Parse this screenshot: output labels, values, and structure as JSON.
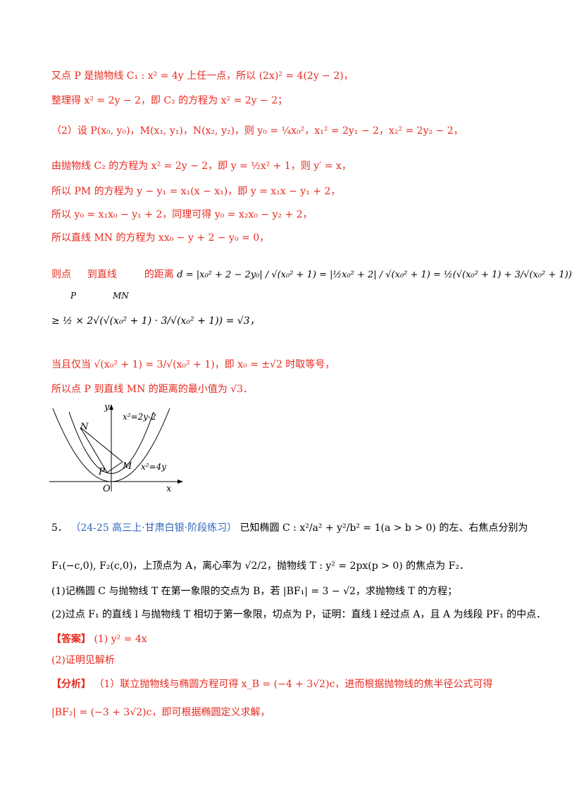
{
  "lines": {
    "l1": "又点 P 是抛物线 C₁ : x² = 4y 上任一点，所以 (2x)² = 4(2y − 2)，",
    "l2": "整理得 x² = 2y − 2，即 C₂ 的方程为 x² = 2y − 2；",
    "l3": "（2）设 P(x₀, y₀)，M(x₁, y₁)，N(x₂, y₂)，则 y₀ = ¼x₀²，x₁² = 2y₁ − 2，x₂² = 2y₂ − 2，",
    "l4": "由抛物线 C₂ 的方程为 x² = 2y − 2，即 y = ½x² + 1，则 y′ = x，",
    "l5": "所以 PM 的方程为 y − y₁ = x₁(x − x₁)，即 y = x₁x − y₁ + 2，",
    "l6": "所以 y₀ = x₁x₀ − y₁ + 2，同理可得 y₀ = x₂x₀ − y₂ + 2，",
    "l7": "所以直线 MN 的方程为 xx₀ − y + 2 − y₀ = 0，",
    "l8a": "则点",
    "l8b": "到直线",
    "l8c": "的距离",
    "l8P": "P",
    "l8MN": "MN",
    "l8formula": "d = |x₀² + 2 − 2y₀| / √(x₀² + 1) = |½x₀² + 2| / √(x₀² + 1) = ½(√(x₀² + 1) + 3/√(x₀² + 1))",
    "l9": "≥ ½ × 2√(√(x₀² + 1) · 3/√(x₀² + 1)) = √3，",
    "l10": "当且仅当 √(x₀² + 1) = 3/√(x₀² + 1)，即 x₀ = ±√2 时取等号，",
    "l11": "所以点 P 到直线 MN 的距离的最小值为 √3．",
    "q5num": "5．",
    "q5src": "（24-25 高三上·甘肃白银·阶段练习）",
    "q5a": "已知椭圆 C : x²/a² + y²/b² = 1(a > b > 0) 的左、右焦点分别为",
    "q5b": "F₁(−c,0), F₂(c,0)，上顶点为 A，离心率为 √2/2，抛物线 T : y² = 2px(p > 0) 的焦点为 F₂．",
    "q5c": "(1)记椭圆 C 与抛物线 T 在第一象限的交点为 B，若 |BF₁| = 3 − √2，求抛物线 T 的方程；",
    "q5d": "(2)过点 F₁ 的直线 l 与抛物线 T 相切于第一象限，切点为 P，证明：直线 l 经过点 A，且 A 为线段 PF₁ 的中点．",
    "ans_label": "【答案】",
    "ans1": "(1) y² = 4x",
    "ans2": "(2)证明见解析",
    "ana_label": "【分析】",
    "ana1": "（1）联立抛物线与椭圆方程可得 x_B = (−4 + 3√2)c，进而根据抛物线的焦半径公式可得",
    "ana2": "|BF₂| = (−3 + 3√2)c，即可根据椭圆定义求解，"
  },
  "diagram": {
    "label_y": "y",
    "label_x": "x",
    "label_O": "O",
    "label_N": "N",
    "label_M": "M",
    "label_P": "P",
    "curve1": "x²=2y-2",
    "curve2": "x²=4y"
  },
  "colors": {
    "red": "#e8281e",
    "blue": "#2f64b8",
    "black": "#000000"
  }
}
